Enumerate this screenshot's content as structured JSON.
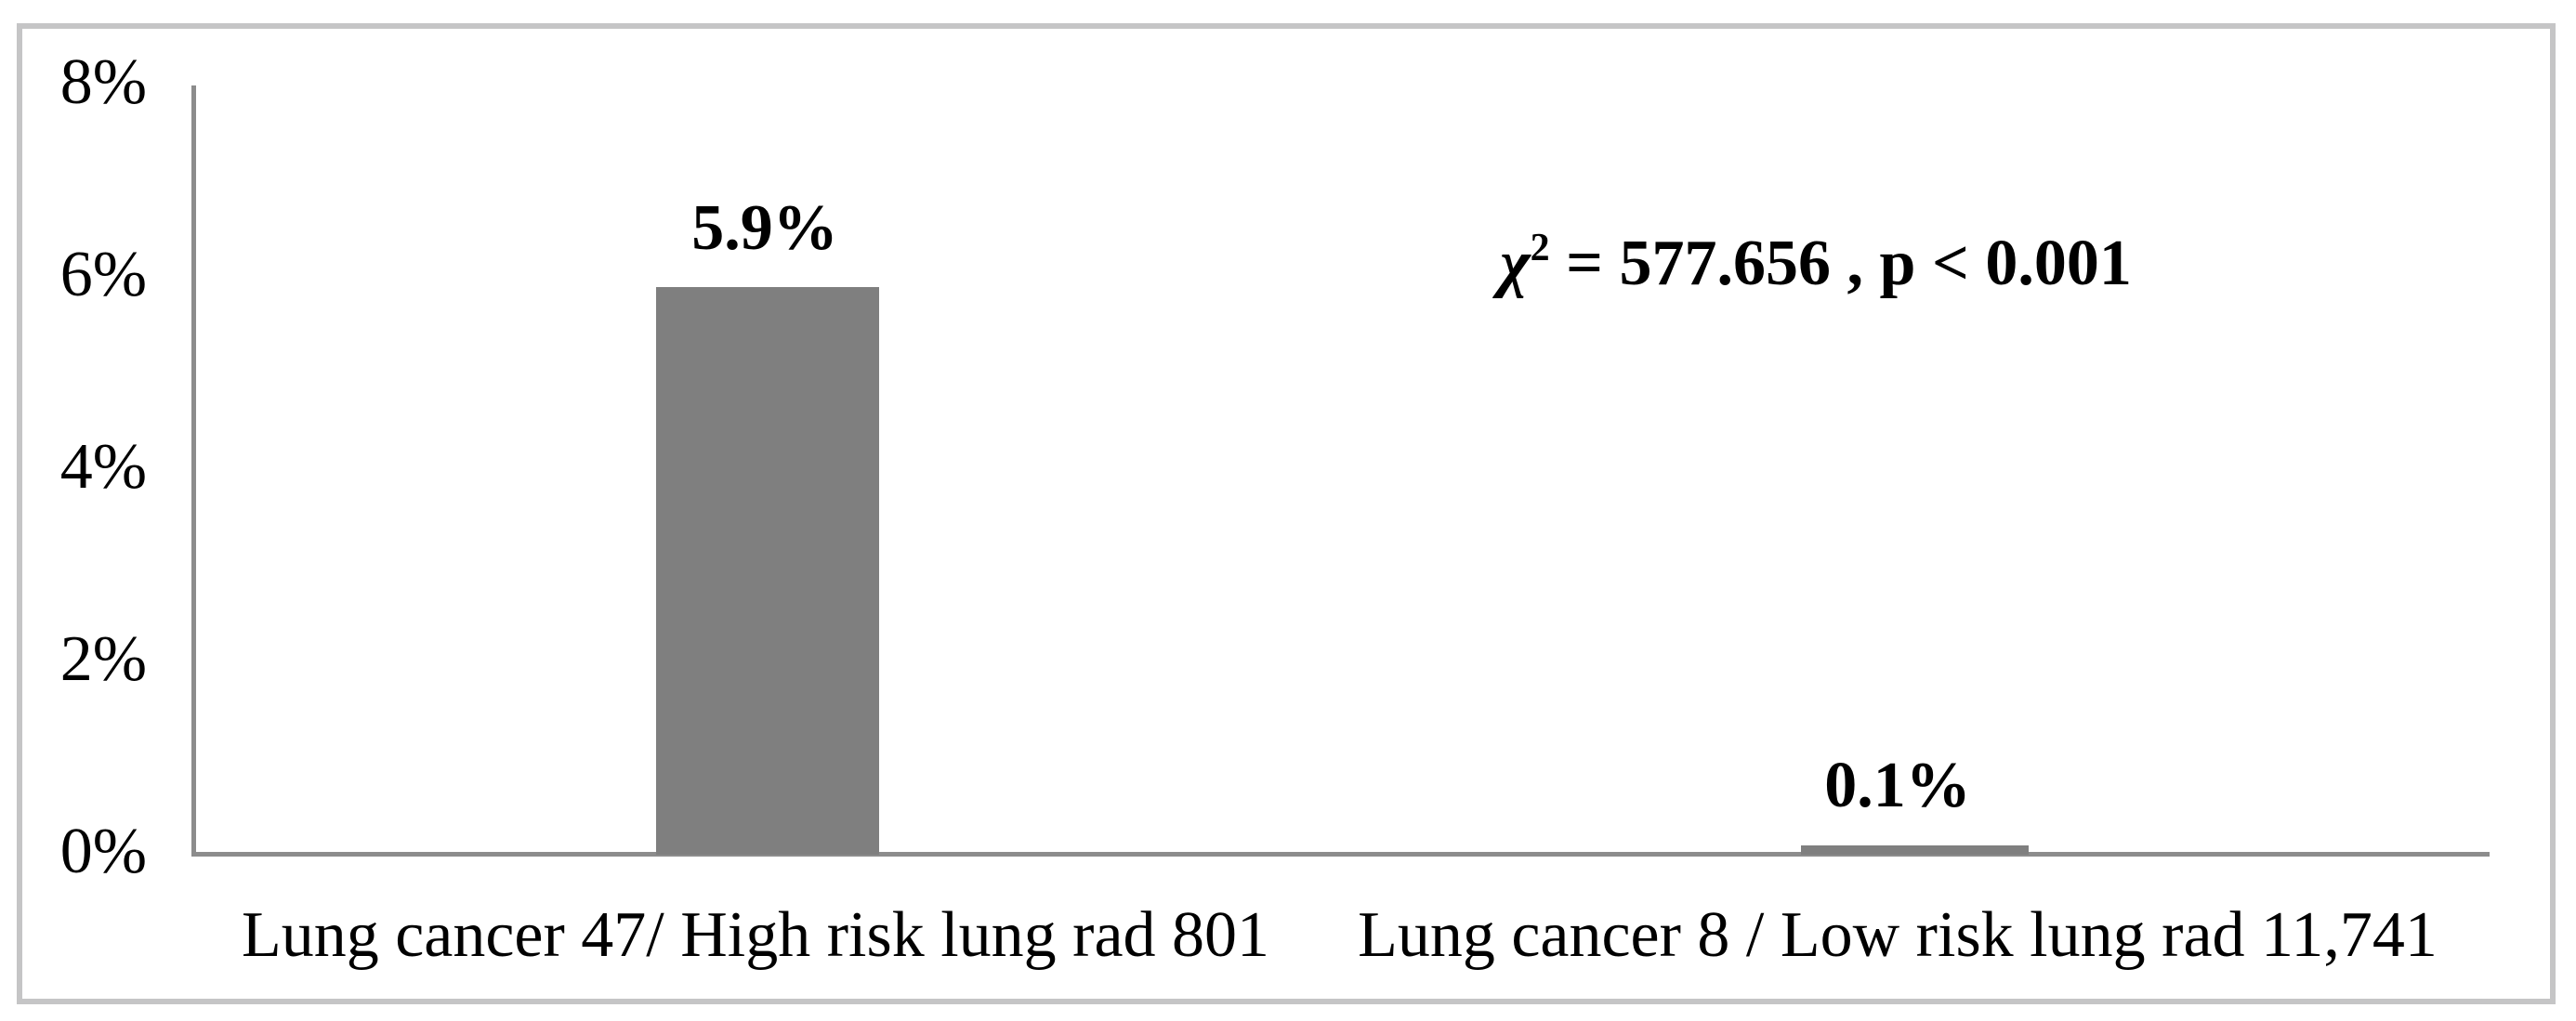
{
  "chart_data": {
    "type": "bar",
    "title": "",
    "xlabel": "",
    "ylabel": "",
    "categories": [
      "Lung cancer 47/ High risk lung rad 801",
      "Lung cancer 8 / Low risk lung rad 11,741"
    ],
    "values": [
      5.9,
      0.1
    ],
    "unit": "%",
    "data_labels": [
      "5.9%",
      "0.1%"
    ],
    "yticks": [
      "0%",
      "2%",
      "4%",
      "6%",
      "8%"
    ],
    "ylim": [
      0,
      8
    ],
    "grid": false,
    "legend_position": "none",
    "annotation": {
      "full": "χ² = 577.656 , p < 0.001",
      "chi": "χ",
      "exponent": "2",
      "rest": " = 577.656 , p < 0.001"
    },
    "colors": {
      "bar_fill": "#7f7f7f",
      "axis_line": "#8c8c8c",
      "frame_border": "#c5c5c6",
      "text": "#000000",
      "background": "#ffffff"
    }
  }
}
